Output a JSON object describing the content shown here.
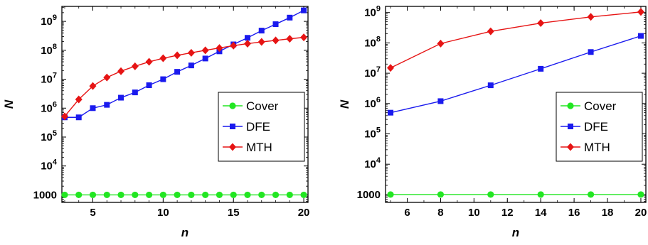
{
  "chart_data": [
    {
      "type": "line",
      "xlabel": "n",
      "ylabel": "N",
      "yscale": "log",
      "xlim": [
        2.8,
        20.3
      ],
      "ylim": [
        550,
        3300000000
      ],
      "x_ticks": [
        5,
        10,
        15,
        20
      ],
      "y_ticks": [
        {
          "value": 1000,
          "label": "1000"
        },
        {
          "value": 10000,
          "base": "10",
          "exp": "4"
        },
        {
          "value": 100000,
          "base": "10",
          "exp": "5"
        },
        {
          "value": 1000000,
          "base": "10",
          "exp": "6"
        },
        {
          "value": 10000000,
          "base": "10",
          "exp": "7"
        },
        {
          "value": 100000000,
          "base": "10",
          "exp": "8"
        },
        {
          "value": 1000000000,
          "base": "10",
          "exp": "9"
        }
      ],
      "legend": "right",
      "series": [
        {
          "name": "Cover",
          "color": "#22e622",
          "marker": "circle",
          "x": [
            3,
            4,
            5,
            6,
            7,
            8,
            9,
            10,
            11,
            12,
            13,
            14,
            15,
            16,
            17,
            18,
            19,
            20
          ],
          "y": [
            1000,
            1000,
            1000,
            1000,
            1000,
            1000,
            1000,
            1000,
            1000,
            1000,
            1000,
            1000,
            1000,
            1000,
            1000,
            1000,
            1000,
            1000
          ]
        },
        {
          "name": "DFE",
          "color": "#1a1aee",
          "marker": "square",
          "x": [
            3,
            4,
            5,
            6,
            7,
            8,
            9,
            10,
            11,
            12,
            13,
            14,
            15,
            16,
            17,
            18,
            19,
            20
          ],
          "y": [
            480000,
            480000,
            1000000,
            1300000,
            2300000,
            3500000,
            6200000,
            10000000,
            18000000,
            30000000,
            52000000,
            92000000,
            160000000,
            270000000,
            480000000,
            800000000,
            1350000000,
            2400000000
          ]
        },
        {
          "name": "MTH",
          "color": "#e61414",
          "marker": "diamond",
          "x": [
            3,
            4,
            5,
            6,
            7,
            8,
            9,
            10,
            11,
            12,
            13,
            14,
            15,
            16,
            17,
            18,
            19,
            20
          ],
          "y": [
            520000,
            2000000,
            5800000,
            11500000,
            19000000,
            28000000,
            40000000,
            53000000,
            67000000,
            82000000,
            100000000,
            120000000,
            145000000,
            170000000,
            195000000,
            220000000,
            250000000,
            280000000
          ]
        }
      ]
    },
    {
      "type": "line",
      "xlabel": "n",
      "ylabel": "N",
      "yscale": "log",
      "xlim": [
        4.7,
        20.3
      ],
      "ylim": [
        550,
        1600000000
      ],
      "x_ticks": [
        6,
        8,
        10,
        12,
        14,
        16,
        18,
        20
      ],
      "y_ticks": [
        {
          "value": 1000,
          "label": "1000"
        },
        {
          "value": 10000,
          "base": "10",
          "exp": "4"
        },
        {
          "value": 100000,
          "base": "10",
          "exp": "5"
        },
        {
          "value": 1000000,
          "base": "10",
          "exp": "6"
        },
        {
          "value": 10000000,
          "base": "10",
          "exp": "7"
        },
        {
          "value": 100000000,
          "base": "10",
          "exp": "8"
        },
        {
          "value": 1000000000,
          "base": "10",
          "exp": "9"
        }
      ],
      "legend": "right",
      "series": [
        {
          "name": "Cover",
          "color": "#22e622",
          "marker": "circle",
          "x": [
            5,
            8,
            11,
            14,
            17,
            20
          ],
          "y": [
            1000,
            1000,
            1000,
            1000,
            1000,
            1000
          ]
        },
        {
          "name": "DFE",
          "color": "#1a1aee",
          "marker": "square",
          "x": [
            5,
            8,
            11,
            14,
            17,
            20
          ],
          "y": [
            500000,
            1200000,
            4000000,
            14000000,
            50000000,
            170000000
          ]
        },
        {
          "name": "MTH",
          "color": "#e61414",
          "marker": "diamond",
          "x": [
            5,
            8,
            11,
            14,
            17,
            20
          ],
          "y": [
            15000000,
            95000000,
            240000000,
            450000000,
            720000000,
            1050000000
          ]
        }
      ]
    }
  ]
}
